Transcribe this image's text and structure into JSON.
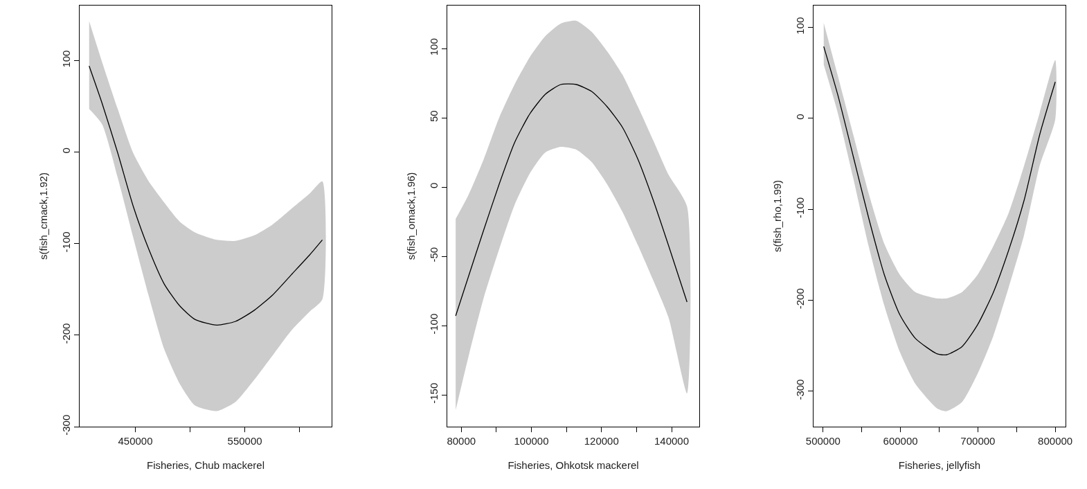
{
  "chart_data": [
    {
      "type": "line",
      "xlabel": "Fisheries, Chub mackerel",
      "ylabel": "s(fish_cmack,1.92)",
      "xlim": [
        399100,
        629300
      ],
      "ylim": [
        -300,
        160
      ],
      "xticks": [
        450000,
        {
          "value": 500000,
          "label": null
        },
        550000,
        {
          "value": 600000,
          "label": null
        }
      ],
      "yticks": [
        -300,
        -200,
        -100,
        0,
        100
      ],
      "series": [
        {
          "color": "#000000",
          "x": [
            407800,
            419700,
            433900,
            448000,
            462200,
            476300,
            490500,
            504700,
            524500,
            541500,
            558500,
            575500,
            592500,
            609500,
            620800
          ],
          "values": [
            94,
            53,
            -1,
            -59,
            -106,
            -144,
            -168,
            -183,
            -189,
            -185,
            -173,
            -156,
            -134,
            -112,
            -96
          ],
          "upper": [
            143,
            98,
            47,
            -1,
            -32,
            -55,
            -76,
            -88,
            -96,
            -97,
            -91,
            -79,
            -62,
            -45,
            -32
          ],
          "lower": [
            47,
            30,
            -28,
            -93,
            -157,
            -215,
            -253,
            -277,
            -283,
            -273,
            -249,
            -222,
            -195,
            -174,
            -161
          ]
        }
      ]
    },
    {
      "type": "line",
      "xlabel": "Fisheries, Ohkotsk mackerel",
      "ylabel": "s(fish_omack,1.96)",
      "xlim": [
        76000,
        147900
      ],
      "ylim": [
        -173,
        131
      ],
      "xticks": [
        80000,
        {
          "value": 90000,
          "label": null
        },
        100000,
        {
          "value": 110000,
          "label": null
        },
        120000,
        {
          "value": 130000,
          "label": null
        },
        140000
      ],
      "yticks": [
        -150,
        -100,
        -50,
        0,
        50,
        100
      ],
      "series": [
        {
          "color": "#000000",
          "x": [
            78400,
            82000,
            86400,
            90800,
            95200,
            99600,
            104000,
            108400,
            112800,
            117200,
            121600,
            126000,
            130400,
            134700,
            139100,
            144400
          ],
          "values": [
            -93,
            -65,
            -31,
            2,
            32,
            53,
            67,
            74,
            74,
            69,
            58,
            43,
            20,
            -9,
            -42,
            -83
          ],
          "upper": [
            -23,
            -6,
            20,
            50,
            74,
            94,
            109,
            118,
            120,
            112,
            98,
            81,
            58,
            34,
            9,
            -14
          ],
          "lower": [
            -161,
            -123,
            -80,
            -45,
            -13,
            10,
            25,
            29,
            27,
            18,
            2,
            -18,
            -42,
            -67,
            -94,
            -149
          ]
        }
      ]
    },
    {
      "type": "line",
      "xlabel": "Fisheries, jellyfish",
      "ylabel": "s(fish_rho,1.99)",
      "xlim": [
        487600,
        813300
      ],
      "ylim": [
        -339,
        124
      ],
      "xticks": [
        500000,
        {
          "value": 550000,
          "label": null
        },
        600000,
        {
          "value": 650000,
          "label": null
        },
        700000,
        {
          "value": 750000,
          "label": null
        },
        800000
      ],
      "yticks": [
        -300,
        -200,
        -100,
        0,
        100
      ],
      "series": [
        {
          "color": "#000000",
          "x": [
            500800,
            518900,
            539000,
            559000,
            579100,
            599200,
            619300,
            647400,
            659400,
            679500,
            699600,
            719700,
            739800,
            759800,
            779900,
            800000
          ],
          "values": [
            79,
            26,
            -42,
            -110,
            -172,
            -216,
            -242,
            -259,
            -260,
            -251,
            -227,
            -192,
            -145,
            -90,
            -18,
            40
          ],
          "upper": [
            105,
            47,
            -18,
            -83,
            -138,
            -172,
            -191,
            -198,
            -198,
            -191,
            -172,
            -141,
            -104,
            -52,
            6,
            64
          ],
          "lower": [
            59,
            6,
            -66,
            -141,
            -206,
            -257,
            -292,
            -319,
            -322,
            -312,
            -281,
            -240,
            -186,
            -128,
            -52,
            -1
          ]
        }
      ]
    }
  ]
}
